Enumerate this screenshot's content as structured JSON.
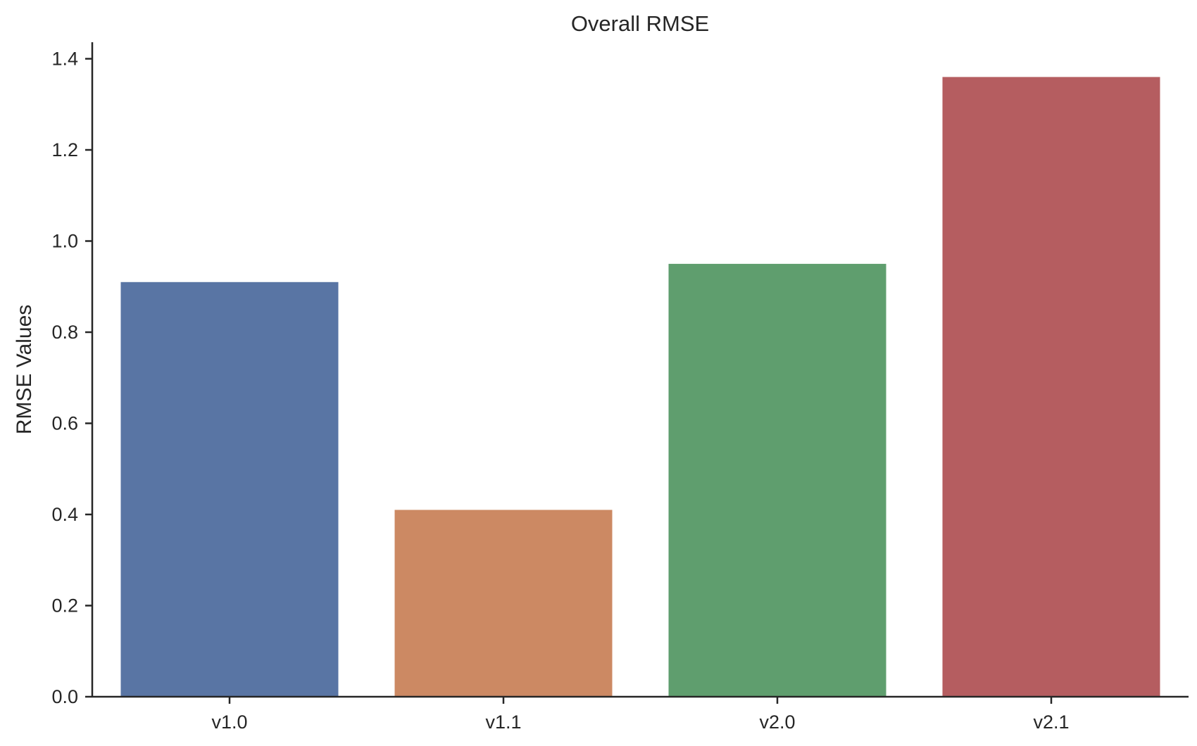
{
  "chart_data": {
    "type": "bar",
    "title": "Overall RMSE",
    "xlabel": "",
    "ylabel": "RMSE Values",
    "categories": [
      "v1.0",
      "v1.1",
      "v2.0",
      "v2.1"
    ],
    "values": [
      0.91,
      0.41,
      0.95,
      1.36
    ],
    "colors": [
      "#5975a4",
      "#cc8963",
      "#5f9e6e",
      "#b55d60"
    ],
    "ylim": [
      0,
      1.44
    ],
    "yticks": [
      0.0,
      0.2,
      0.4,
      0.6,
      0.8,
      1.0,
      1.2,
      1.4
    ],
    "ytick_labels": [
      "0.0",
      "0.2",
      "0.4",
      "0.6",
      "0.8",
      "1.0",
      "1.2",
      "1.4"
    ],
    "grid": false,
    "legend": "none"
  }
}
